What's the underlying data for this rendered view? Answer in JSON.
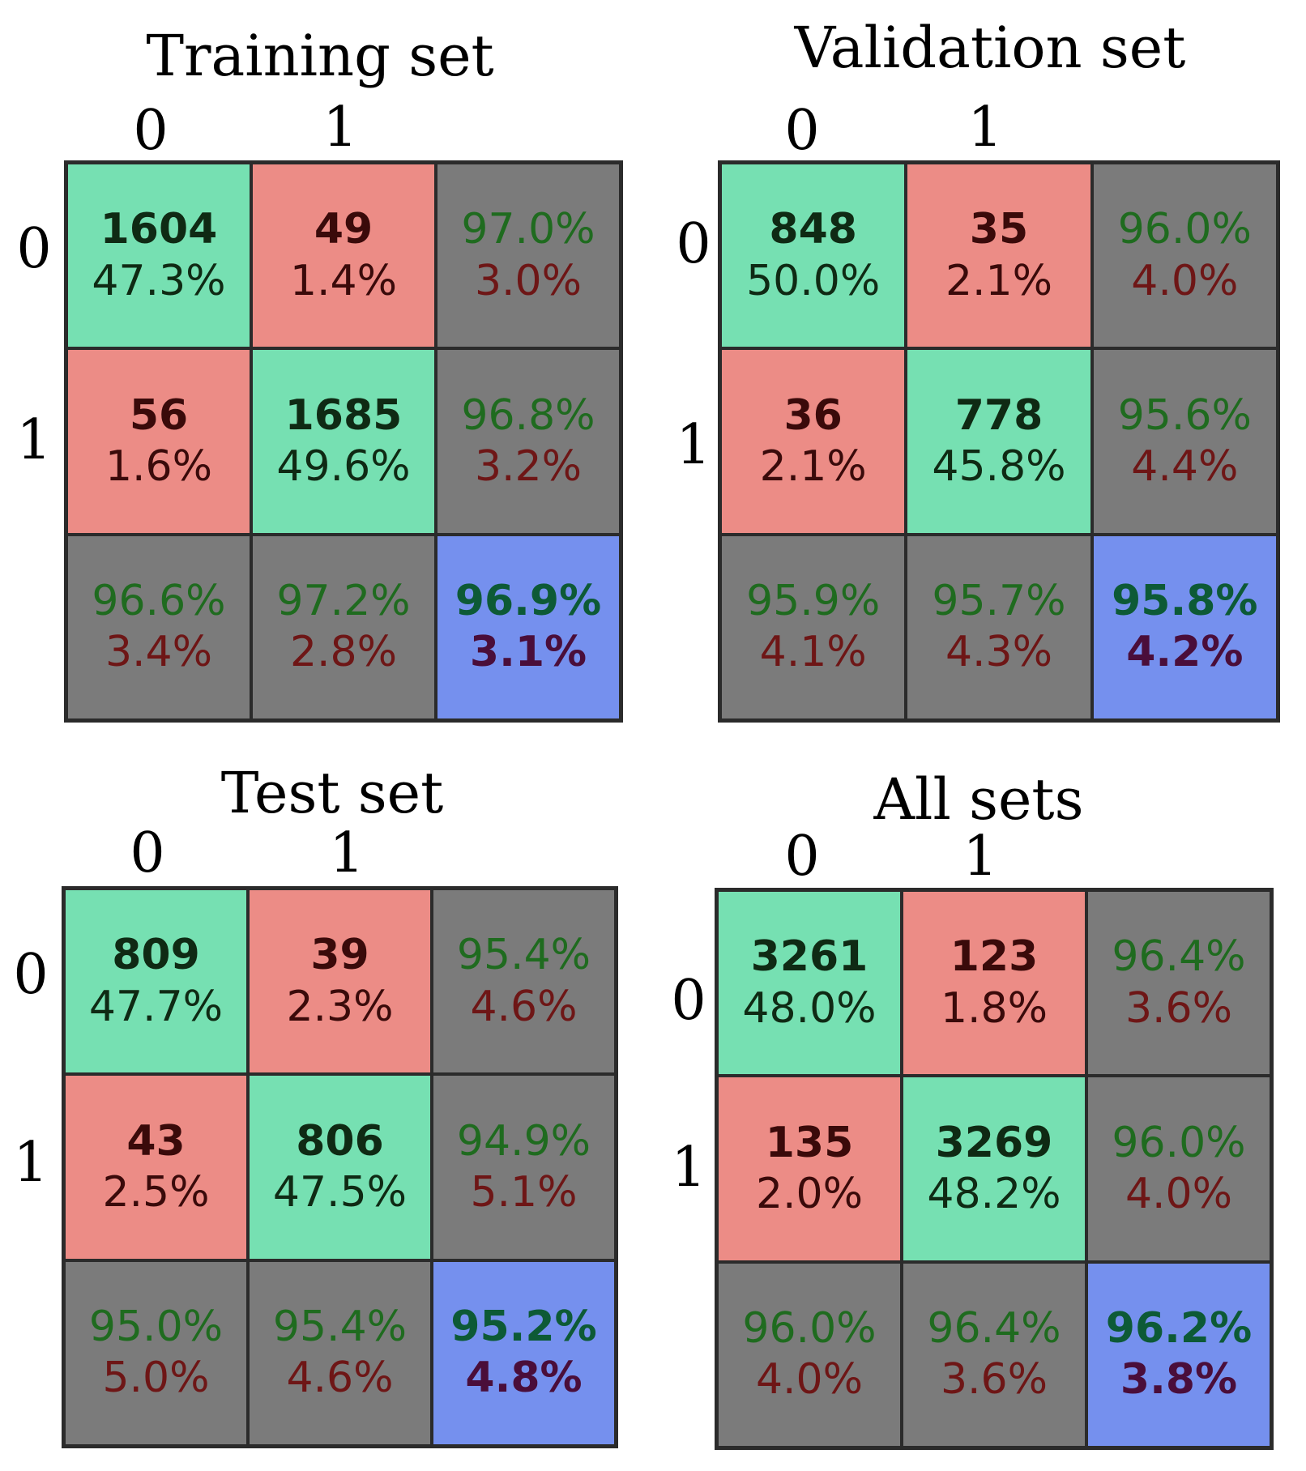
{
  "chart_data": [
    {
      "type": "table",
      "title": "Training set",
      "columns": [
        "0",
        "1"
      ],
      "rows": [
        "0",
        "1"
      ],
      "cells": [
        [
          {
            "v1": "1604",
            "v2": "47.3%"
          },
          {
            "v1": "49",
            "v2": "1.4%"
          },
          {
            "v1": "97.0%",
            "v2": "3.0%"
          }
        ],
        [
          {
            "v1": "56",
            "v2": "1.6%"
          },
          {
            "v1": "1685",
            "v2": "49.6%"
          },
          {
            "v1": "96.8%",
            "v2": "3.2%"
          }
        ],
        [
          {
            "v1": "96.6%",
            "v2": "3.4%"
          },
          {
            "v1": "97.2%",
            "v2": "2.8%"
          },
          {
            "v1": "96.9%",
            "v2": "3.1%"
          }
        ]
      ]
    },
    {
      "type": "table",
      "title": "Validation set",
      "columns": [
        "0",
        "1"
      ],
      "rows": [
        "0",
        "1"
      ],
      "cells": [
        [
          {
            "v1": "848",
            "v2": "50.0%"
          },
          {
            "v1": "35",
            "v2": "2.1%"
          },
          {
            "v1": "96.0%",
            "v2": "4.0%"
          }
        ],
        [
          {
            "v1": "36",
            "v2": "2.1%"
          },
          {
            "v1": "778",
            "v2": "45.8%"
          },
          {
            "v1": "95.6%",
            "v2": "4.4%"
          }
        ],
        [
          {
            "v1": "95.9%",
            "v2": "4.1%"
          },
          {
            "v1": "95.7%",
            "v2": "4.3%"
          },
          {
            "v1": "95.8%",
            "v2": "4.2%"
          }
        ]
      ]
    },
    {
      "type": "table",
      "title": "Test set",
      "columns": [
        "0",
        "1"
      ],
      "rows": [
        "0",
        "1"
      ],
      "cells": [
        [
          {
            "v1": "809",
            "v2": "47.7%"
          },
          {
            "v1": "39",
            "v2": "2.3%"
          },
          {
            "v1": "95.4%",
            "v2": "4.6%"
          }
        ],
        [
          {
            "v1": "43",
            "v2": "2.5%"
          },
          {
            "v1": "806",
            "v2": "47.5%"
          },
          {
            "v1": "94.9%",
            "v2": "5.1%"
          }
        ],
        [
          {
            "v1": "95.0%",
            "v2": "5.0%"
          },
          {
            "v1": "95.4%",
            "v2": "4.6%"
          },
          {
            "v1": "95.2%",
            "v2": "4.8%"
          }
        ]
      ]
    },
    {
      "type": "table",
      "title": "All sets",
      "columns": [
        "0",
        "1"
      ],
      "rows": [
        "0",
        "1"
      ],
      "cells": [
        [
          {
            "v1": "3261",
            "v2": "48.0%"
          },
          {
            "v1": "123",
            "v2": "1.8%"
          },
          {
            "v1": "96.4%",
            "v2": "3.6%"
          }
        ],
        [
          {
            "v1": "135",
            "v2": "2.0%"
          },
          {
            "v1": "3269",
            "v2": "48.2%"
          },
          {
            "v1": "96.0%",
            "v2": "4.0%"
          }
        ],
        [
          {
            "v1": "96.0%",
            "v2": "4.0%"
          },
          {
            "v1": "96.4%",
            "v2": "3.6%"
          },
          {
            "v1": "96.2%",
            "v2": "3.8%"
          }
        ]
      ]
    }
  ]
}
